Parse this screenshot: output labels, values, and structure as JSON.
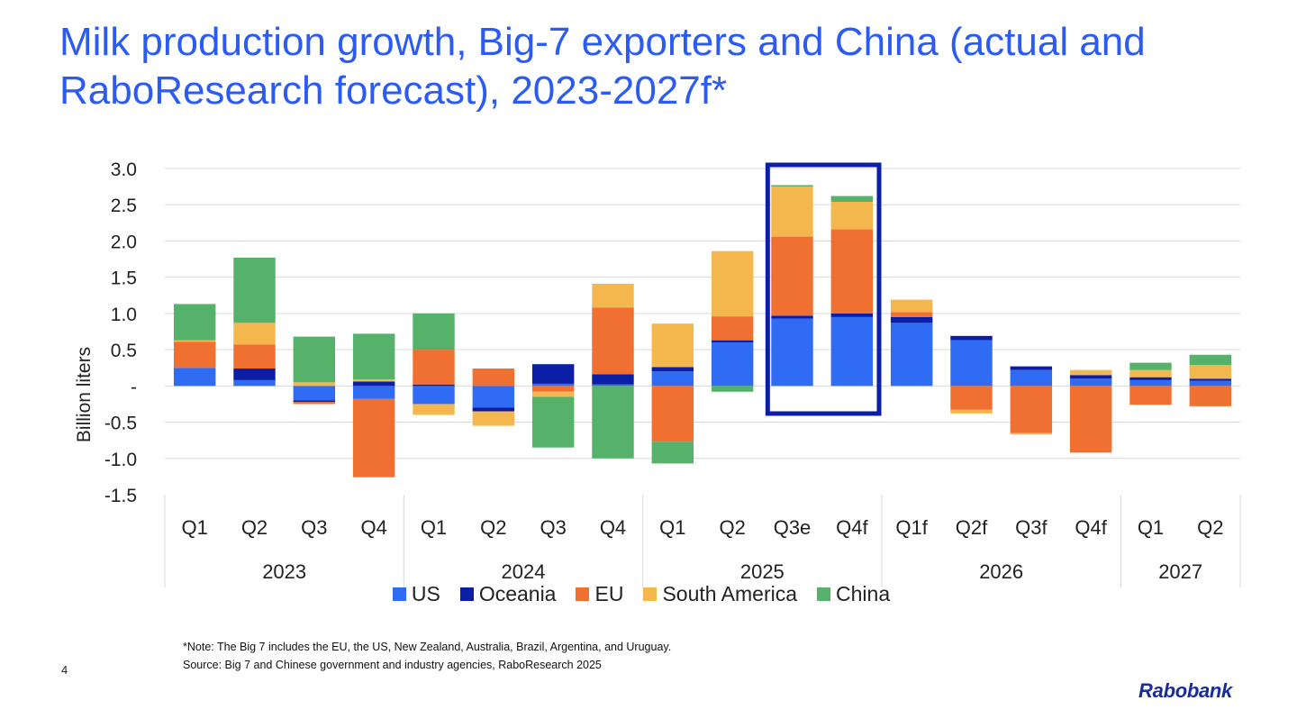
{
  "slide": {
    "title": "Milk production growth, Big-7 exporters and China (actual and RaboResearch forecast), 2023-2027f*",
    "note_line1": "*Note: The Big 7 includes the EU, the US, New Zealand, Australia, Brazil, Argentina, and Uruguay.",
    "note_line2": "Source: Big 7 and Chinese government and industry agencies, RaboResearch 2025",
    "page_number": "4",
    "logo": "Rabobank"
  },
  "chart_data": {
    "type": "bar",
    "stacked": true,
    "title": "",
    "xlabel": "",
    "ylabel": "Billion liters",
    "ylim": [
      -1.5,
      3.0
    ],
    "yticks": [
      3.0,
      2.5,
      2.0,
      1.5,
      1.0,
      0.5,
      0,
      -0.5,
      -1.0,
      -1.5
    ],
    "ytick_labels": [
      "3.0",
      "2.5",
      "2.0",
      "1.5",
      "1.0",
      "0.5",
      "-",
      "-0.5",
      "-1.0",
      "-1.5"
    ],
    "categories": [
      "Q1",
      "Q2",
      "Q3",
      "Q4",
      "Q1",
      "Q2",
      "Q3",
      "Q4",
      "Q1",
      "Q2",
      "Q3e",
      "Q4f",
      "Q1f",
      "Q2f",
      "Q3f",
      "Q4f",
      "Q1",
      "Q2"
    ],
    "year_groups": [
      {
        "label": "2023",
        "count": 4
      },
      {
        "label": "2024",
        "count": 4
      },
      {
        "label": "2025",
        "count": 4
      },
      {
        "label": "2026",
        "count": 4
      },
      {
        "label": "2027",
        "count": 2
      }
    ],
    "series": [
      {
        "name": "US",
        "color": "#2f6bf3",
        "values": [
          0.25,
          0.08,
          -0.2,
          -0.18,
          -0.25,
          -0.3,
          0.03,
          0.02,
          0.2,
          0.6,
          0.93,
          0.95,
          0.87,
          0.63,
          0.22,
          0.1,
          0.08,
          0.07
        ]
      },
      {
        "name": "Oceania",
        "color": "#0c1ea6",
        "values": [
          0,
          0.16,
          -0.02,
          0.06,
          0.02,
          -0.05,
          0.27,
          0.14,
          0.06,
          0.03,
          0.04,
          0.05,
          0.08,
          0.06,
          0.05,
          0.05,
          0.04,
          0.03
        ]
      },
      {
        "name": "EU",
        "color": "#ef7031",
        "values": [
          0.36,
          0.33,
          -0.03,
          -1.08,
          0.48,
          0.24,
          -0.08,
          0.92,
          -0.77,
          0.33,
          1.09,
          1.16,
          0.07,
          -0.33,
          -0.65,
          -0.92,
          -0.26,
          -0.28
        ]
      },
      {
        "name": "South America",
        "color": "#f4b74d",
        "values": [
          0.02,
          0.3,
          0.05,
          0.03,
          -0.15,
          -0.2,
          -0.07,
          0.33,
          0.6,
          0.9,
          0.69,
          0.38,
          0.17,
          -0.05,
          -0.02,
          0.07,
          0.1,
          0.19
        ]
      },
      {
        "name": "China",
        "color": "#56b26b",
        "values": [
          0.5,
          0.9,
          0.63,
          0.63,
          0.5,
          0,
          -0.7,
          -1.0,
          -0.3,
          -0.08,
          0.02,
          0.08,
          0,
          0,
          0,
          0,
          0.1,
          0.14
        ]
      }
    ],
    "highlight_box": {
      "from_category_index": 10,
      "to_category_index": 11
    }
  }
}
